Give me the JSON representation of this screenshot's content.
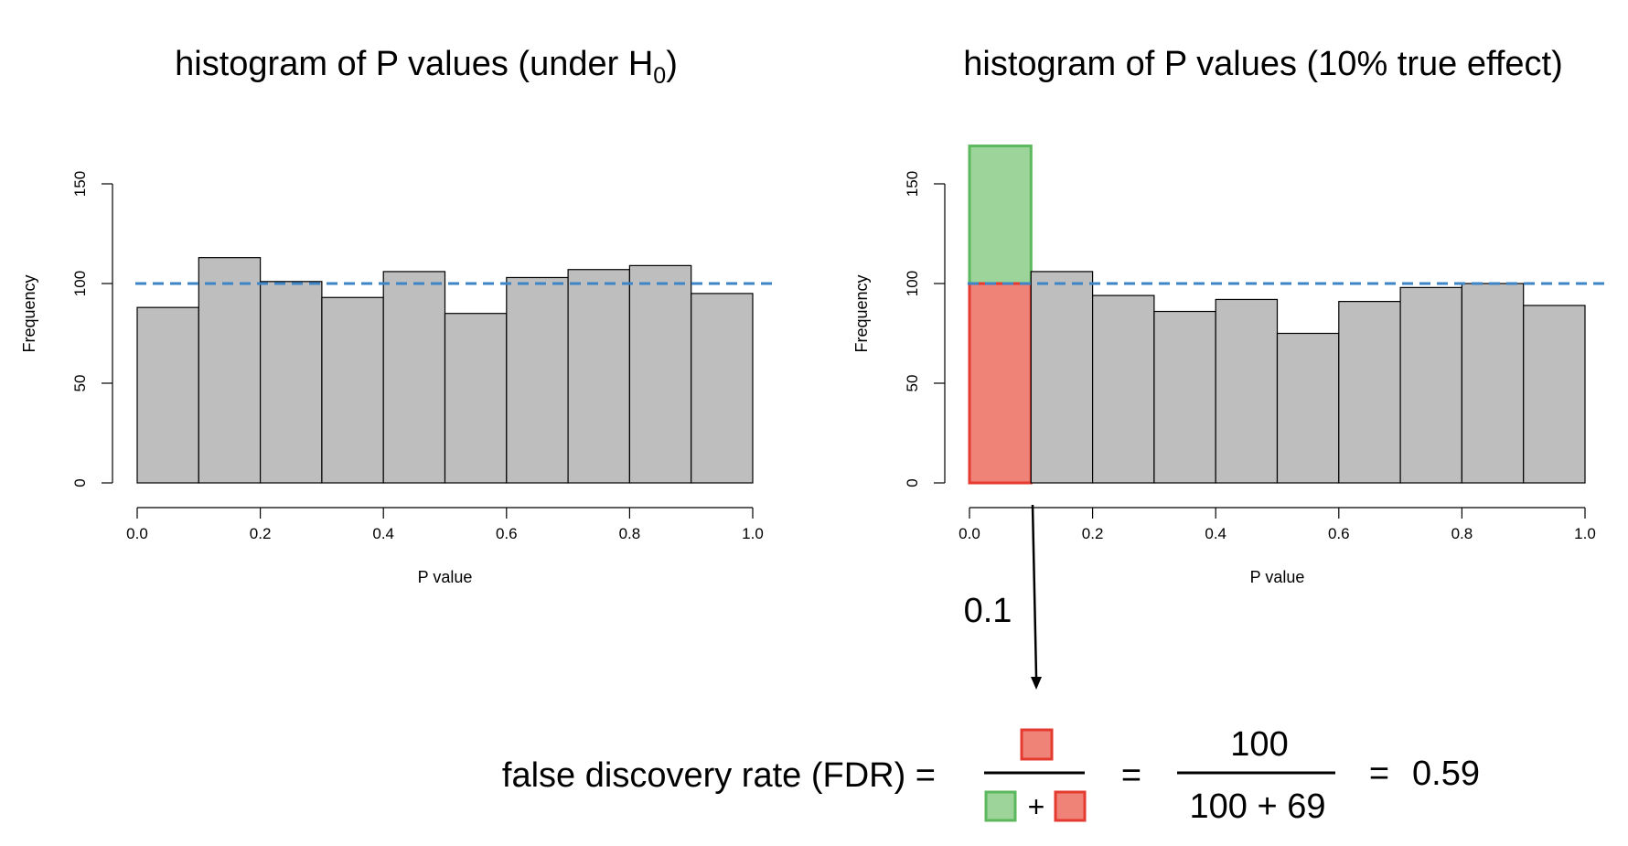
{
  "chart_data": [
    {
      "type": "bar",
      "title": "histogram of P values (under H",
      "title_sub": "0",
      "title_end": ")",
      "xlabel": "P value",
      "ylabel": "Frequency",
      "xlim": [
        0.0,
        1.0
      ],
      "ylim": [
        0,
        150
      ],
      "x_ticks": [
        "0.0",
        "0.2",
        "0.4",
        "0.6",
        "0.8",
        "1.0"
      ],
      "y_ticks": [
        "0",
        "50",
        "100",
        "150"
      ],
      "bin_width": 0.1,
      "bins": [
        0.0,
        0.1,
        0.2,
        0.3,
        0.4,
        0.5,
        0.6,
        0.7,
        0.8,
        0.9
      ],
      "values": [
        88,
        113,
        101,
        93,
        106,
        85,
        103,
        107,
        109,
        95
      ],
      "reference_line": 100,
      "bar_color": "#bebebe",
      "reference_color": "#3d85c6",
      "grid": false
    },
    {
      "type": "bar",
      "title": "histogram of P values (10% true effect)",
      "xlabel": "P value",
      "ylabel": "Frequency",
      "xlim": [
        0.0,
        1.0
      ],
      "ylim": [
        0,
        150
      ],
      "x_ticks": [
        "0.0",
        "0.2",
        "0.4",
        "0.6",
        "0.8",
        "1.0"
      ],
      "y_ticks": [
        "0",
        "50",
        "100",
        "150"
      ],
      "bin_width": 0.1,
      "bins": [
        0.0,
        0.1,
        0.2,
        0.3,
        0.4,
        0.5,
        0.6,
        0.7,
        0.8,
        0.9
      ],
      "values": [
        169,
        106,
        94,
        86,
        92,
        75,
        91,
        98,
        100,
        89
      ],
      "first_bin_split": {
        "false_positives": 100,
        "true_positives": 69
      },
      "reference_line": 100,
      "bar_color": "#bebebe",
      "false_color": "#f08377",
      "false_border": "#e53a2f",
      "true_color": "#9dd49a",
      "true_border": "#5cb85c",
      "reference_color": "#3d85c6",
      "threshold_label": "0.1",
      "grid": false
    }
  ],
  "formula": {
    "label": "false discovery rate (FDR) =",
    "equals": "=",
    "plus": "+",
    "numerator": "100",
    "denominator": "100 + 69",
    "equals2": "=",
    "result": "0.59"
  }
}
